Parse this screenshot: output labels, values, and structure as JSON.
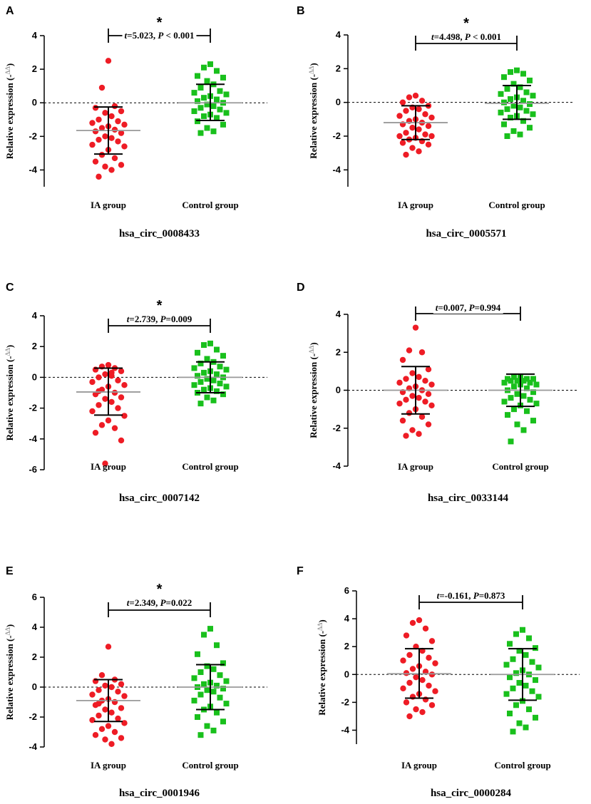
{
  "chart_data": [
    {
      "type": "scatter",
      "panel": "A",
      "title": "hsa_circ_0008433",
      "ylabel": "Relative expression (-ΔΔ)",
      "ylabel_prefix": "Relative expression (-",
      "ylabel_sup": "ΔΔ",
      "ylabel_suffix": ")",
      "categories": [
        "IA group",
        "Control group"
      ],
      "ylim": [
        -5,
        4
      ],
      "yticks": [
        -4,
        -2,
        0,
        2,
        4
      ],
      "stat_t": "t",
      "stat_mid": "=5.023, ",
      "stat_p": "P",
      "stat_end": " < 0.001",
      "significant": "*",
      "groups": [
        {
          "name": "IA group",
          "color": "#ee1c25",
          "marker": "circle",
          "mean": -1.65,
          "sd_low": -3.05,
          "sd_high": -0.25,
          "values": [
            2.5,
            0.9,
            -0.2,
            -0.3,
            -0.5,
            -0.6,
            -0.8,
            -1.0,
            -1.1,
            -1.2,
            -1.3,
            -1.4,
            -1.5,
            -1.6,
            -1.7,
            -1.8,
            -2.0,
            -2.1,
            -2.2,
            -2.3,
            -2.5,
            -2.6,
            -2.8,
            -3.1,
            -3.3,
            -3.5,
            -3.7,
            -3.8,
            -4.0,
            -4.4
          ]
        },
        {
          "name": "Control group",
          "color": "#19c01c",
          "marker": "square",
          "mean": 0.0,
          "sd_low": -1.05,
          "sd_high": 1.1,
          "values": [
            2.3,
            2.1,
            1.9,
            1.6,
            1.5,
            1.3,
            1.1,
            0.9,
            0.7,
            0.6,
            0.5,
            0.4,
            0.3,
            0.2,
            0.1,
            0.0,
            -0.1,
            -0.2,
            -0.3,
            -0.4,
            -0.5,
            -0.6,
            -0.7,
            -0.8,
            -0.9,
            -1.1,
            -1.3,
            -1.5,
            -1.7,
            -1.8
          ]
        }
      ]
    },
    {
      "type": "scatter",
      "panel": "B",
      "title": "hsa_circ_0005571",
      "ylabel": "Relative expression (-ΔΔ)",
      "ylabel_prefix": "Relative expression (-",
      "ylabel_sup": "ΔΔ",
      "ylabel_suffix": ")",
      "categories": [
        "IA group",
        "Control group"
      ],
      "ylim": [
        -5,
        4
      ],
      "yticks": [
        -4,
        -2,
        0,
        2,
        4
      ],
      "stat_t": "t",
      "stat_mid": "=4.498, ",
      "stat_p": "P",
      "stat_end": " < 0.001",
      "significant": "*",
      "groups": [
        {
          "name": "IA group",
          "color": "#ee1c25",
          "marker": "circle",
          "mean": -1.2,
          "sd_low": -2.2,
          "sd_high": -0.2,
          "values": [
            0.4,
            0.3,
            0.1,
            0.0,
            -0.2,
            -0.3,
            -0.4,
            -0.5,
            -0.7,
            -0.8,
            -0.9,
            -1.0,
            -1.1,
            -1.2,
            -1.3,
            -1.4,
            -1.5,
            -1.6,
            -1.8,
            -1.9,
            -2.0,
            -2.0,
            -2.1,
            -2.2,
            -2.3,
            -2.4,
            -2.5,
            -2.7,
            -2.9,
            -3.1
          ]
        },
        {
          "name": "Control group",
          "color": "#19c01c",
          "marker": "square",
          "mean": -0.05,
          "sd_low": -1.0,
          "sd_high": 1.0,
          "values": [
            1.9,
            1.8,
            1.7,
            1.5,
            1.3,
            1.1,
            0.9,
            0.8,
            0.6,
            0.5,
            0.4,
            0.3,
            0.2,
            0.1,
            0.0,
            -0.1,
            -0.2,
            -0.3,
            -0.4,
            -0.5,
            -0.6,
            -0.7,
            -0.8,
            -0.9,
            -1.1,
            -1.3,
            -1.5,
            -1.7,
            -1.9,
            -2.0
          ]
        }
      ]
    },
    {
      "type": "scatter",
      "panel": "C",
      "title": "hsa_circ_0007142",
      "ylabel": "Relative expression (-ΔΔ)",
      "ylabel_prefix": "Relative expression (-",
      "ylabel_sup": "ΔΔ",
      "ylabel_suffix": ")",
      "categories": [
        "IA group",
        "Control group"
      ],
      "ylim": [
        -6,
        4
      ],
      "yticks": [
        -6,
        -4,
        -2,
        0,
        2,
        4
      ],
      "stat_t": "t",
      "stat_mid": "=2.739, ",
      "stat_p": "P",
      "stat_end": "=0.009",
      "significant": "*",
      "groups": [
        {
          "name": "IA group",
          "color": "#ee1c25",
          "marker": "circle",
          "mean": -0.95,
          "sd_low": -2.45,
          "sd_high": 0.6,
          "values": [
            0.8,
            0.7,
            0.6,
            0.5,
            0.4,
            0.2,
            0.1,
            0.0,
            -0.2,
            -0.3,
            -0.5,
            -0.6,
            -0.8,
            -1.0,
            -1.1,
            -1.3,
            -1.4,
            -1.6,
            -1.8,
            -2.0,
            -2.2,
            -2.5,
            -2.8,
            -3.1,
            -3.3,
            -3.6,
            -4.1,
            -5.6,
            0.3,
            -0.9
          ]
        },
        {
          "name": "Control group",
          "color": "#19c01c",
          "marker": "square",
          "mean": 0.0,
          "sd_low": -1.0,
          "sd_high": 1.0,
          "values": [
            2.2,
            2.1,
            1.8,
            1.6,
            1.4,
            1.2,
            1.0,
            0.9,
            0.7,
            0.6,
            0.5,
            0.4,
            0.3,
            0.2,
            0.1,
            0.0,
            -0.1,
            -0.2,
            -0.3,
            -0.4,
            -0.5,
            -0.6,
            -0.7,
            -0.8,
            -0.9,
            -1.0,
            -1.1,
            -1.3,
            -1.5,
            -1.7
          ]
        }
      ]
    },
    {
      "type": "scatter",
      "panel": "D",
      "title": "hsa_circ_0033144",
      "ylabel": "Relative expression (-ΔΔ)",
      "ylabel_prefix": "Relative expression (-",
      "ylabel_sup": "ΔΔ",
      "ylabel_suffix": ")",
      "categories": [
        "IA group",
        "Control group"
      ],
      "ylim": [
        -4,
        4
      ],
      "yticks": [
        -4,
        -2,
        0,
        2,
        4
      ],
      "stat_t": "t",
      "stat_mid": "=0.007, ",
      "stat_p": "P",
      "stat_end": "=0.994",
      "significant": "",
      "groups": [
        {
          "name": "IA group",
          "color": "#ee1c25",
          "marker": "circle",
          "mean": 0.0,
          "sd_low": -1.25,
          "sd_high": 1.25,
          "values": [
            3.3,
            2.1,
            2.0,
            1.6,
            1.1,
            0.9,
            0.7,
            0.6,
            0.5,
            0.4,
            0.3,
            0.2,
            0.1,
            0.0,
            -0.1,
            -0.2,
            -0.3,
            -0.4,
            -0.5,
            -0.6,
            -0.7,
            -0.8,
            -1.0,
            -1.2,
            -1.4,
            -1.6,
            -1.8,
            -2.1,
            -2.3,
            -2.4
          ]
        },
        {
          "name": "Control group",
          "color": "#19c01c",
          "marker": "square",
          "mean": 0.0,
          "sd_low": -0.85,
          "sd_high": 0.85,
          "values": [
            0.7,
            0.7,
            0.6,
            0.6,
            0.6,
            0.5,
            0.5,
            0.5,
            0.4,
            0.4,
            0.3,
            0.3,
            0.2,
            0.1,
            0.0,
            -0.1,
            -0.2,
            -0.3,
            -0.4,
            -0.5,
            -0.6,
            -0.7,
            -0.8,
            -1.0,
            -1.1,
            -1.3,
            -1.6,
            -1.8,
            -2.1,
            -2.7
          ]
        }
      ]
    },
    {
      "type": "scatter",
      "panel": "E",
      "title": "hsa_circ_0001946",
      "ylabel": "Relative expression (-ΔΔ)",
      "ylabel_prefix": "Relative expression (-",
      "ylabel_sup": "ΔΔ",
      "ylabel_suffix": ")",
      "categories": [
        "IA group",
        "Control group"
      ],
      "ylim": [
        -4,
        6
      ],
      "yticks": [
        -4,
        -2,
        0,
        2,
        4,
        6
      ],
      "stat_t": "t",
      "stat_mid": "=2.349, ",
      "stat_p": "P",
      "stat_end": "=0.022",
      "significant": "*",
      "groups": [
        {
          "name": "IA group",
          "color": "#ee1c25",
          "marker": "circle",
          "mean": -0.9,
          "sd_low": -2.3,
          "sd_high": 0.5,
          "values": [
            2.7,
            0.8,
            0.5,
            0.4,
            0.2,
            0.1,
            0.0,
            -0.2,
            -0.3,
            -0.5,
            -0.6,
            -0.8,
            -0.9,
            -1.0,
            -1.2,
            -1.4,
            -1.5,
            -1.7,
            -1.9,
            -2.1,
            -2.2,
            -2.4,
            -2.6,
            -2.8,
            -3.0,
            -3.2,
            -3.4,
            -3.5,
            -3.8,
            -1.1
          ]
        },
        {
          "name": "Control group",
          "color": "#19c01c",
          "marker": "square",
          "mean": 0.0,
          "sd_low": -1.5,
          "sd_high": 1.5,
          "values": [
            3.9,
            3.5,
            2.8,
            2.2,
            1.6,
            1.4,
            1.2,
            1.0,
            0.8,
            0.6,
            0.4,
            0.3,
            0.2,
            0.1,
            0.0,
            -0.1,
            -0.2,
            -0.3,
            -0.5,
            -0.7,
            -0.9,
            -1.1,
            -1.3,
            -1.5,
            -1.7,
            -2.0,
            -2.3,
            -2.6,
            -2.9,
            -3.2
          ]
        }
      ]
    },
    {
      "type": "scatter",
      "panel": "F",
      "title": "hsa_circ_0000284",
      "ylabel": "Relative expression (-ΔΔ)",
      "ylabel_prefix": "Relative expression (-",
      "ylabel_sup": "ΔΔ",
      "ylabel_suffix": ")",
      "categories": [
        "IA group",
        "Control group"
      ],
      "ylim": [
        -5,
        6
      ],
      "yticks": [
        -4,
        -2,
        0,
        2,
        4,
        6
      ],
      "stat_t": "t",
      "stat_mid": "=-0.161, ",
      "stat_p": "P",
      "stat_end": "=0.873",
      "significant": "",
      "groups": [
        {
          "name": "IA group",
          "color": "#ee1c25",
          "marker": "circle",
          "mean": 0.05,
          "sd_low": -1.7,
          "sd_high": 1.85,
          "values": [
            3.9,
            3.7,
            3.3,
            2.8,
            2.4,
            2.0,
            1.7,
            1.4,
            1.2,
            1.0,
            0.8,
            0.6,
            0.4,
            0.2,
            0.1,
            0.0,
            -0.2,
            -0.4,
            -0.6,
            -0.8,
            -1.0,
            -1.2,
            -1.4,
            -1.6,
            -1.8,
            -2.0,
            -2.2,
            -2.5,
            -2.7,
            -3.0
          ]
        },
        {
          "name": "Control group",
          "color": "#19c01c",
          "marker": "square",
          "mean": 0.0,
          "sd_low": -1.85,
          "sd_high": 1.85,
          "values": [
            3.2,
            2.9,
            2.6,
            2.2,
            1.9,
            1.7,
            1.4,
            1.1,
            0.9,
            0.7,
            0.5,
            0.3,
            0.1,
            0.0,
            -0.2,
            -0.4,
            -0.6,
            -0.8,
            -1.0,
            -1.2,
            -1.4,
            -1.6,
            -1.9,
            -2.2,
            -2.5,
            -2.8,
            -3.1,
            -3.5,
            -3.8,
            -4.1
          ]
        }
      ]
    }
  ]
}
